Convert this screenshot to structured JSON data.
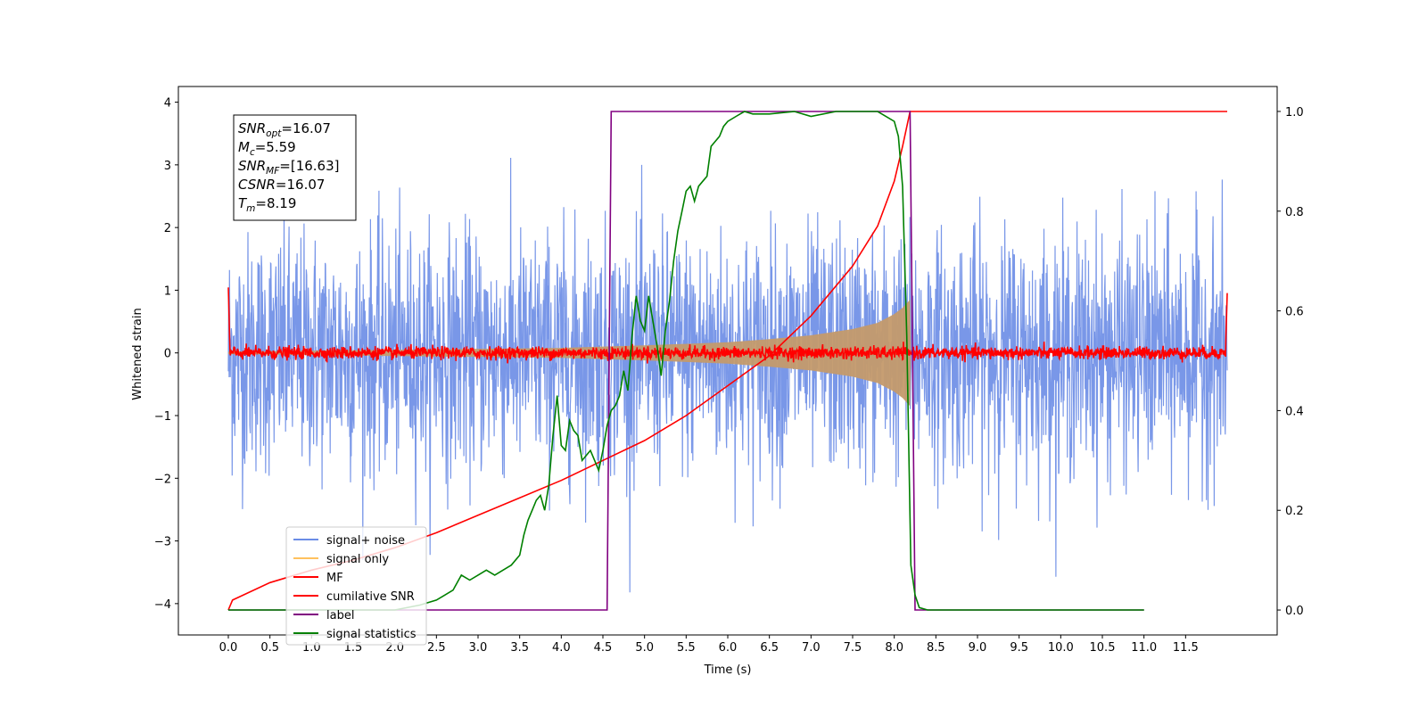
{
  "chart_data": {
    "type": "line",
    "title": "",
    "xlabel": "Time (s)",
    "ylabel": "Whitened strain",
    "y2label": "",
    "xlim": [
      -0.6,
      12.6
    ],
    "ylim": [
      -4.5,
      4.25
    ],
    "y2lim": [
      -0.05,
      1.05
    ],
    "xticks": [
      0.0,
      0.5,
      1.0,
      1.5,
      2.0,
      2.5,
      3.0,
      3.5,
      4.0,
      4.5,
      5.0,
      5.5,
      6.0,
      6.5,
      7.0,
      7.5,
      8.0,
      8.5,
      9.0,
      9.5,
      10.0,
      10.5,
      11.0,
      11.5
    ],
    "xtick_labels": [
      "0.0",
      "0.5",
      "1.0",
      "1.5",
      "2.0",
      "2.5",
      "3.0",
      "3.5",
      "4.0",
      "4.5",
      "5.0",
      "5.5",
      "6.0",
      "6.5",
      "7.0",
      "7.5",
      "8.0",
      "8.5",
      "9.0",
      "9.5",
      "10.0",
      "10.5",
      "11.0",
      "11.5"
    ],
    "yticks": [
      -4,
      -3,
      -2,
      -1,
      0,
      1,
      2,
      3,
      4
    ],
    "ytick_labels": [
      "−4",
      "−3",
      "−2",
      "−1",
      "0",
      "1",
      "2",
      "3",
      "4"
    ],
    "y2ticks": [
      0.0,
      0.2,
      0.4,
      0.6,
      0.8,
      1.0
    ],
    "y2tick_labels": [
      "0.0",
      "0.2",
      "0.4",
      "0.6",
      "0.8",
      "1.0"
    ],
    "grid": false,
    "legend_position": "lower-left",
    "annotation_lines": [
      {
        "id": "snr_opt",
        "base": "SNR",
        "sub": "opt",
        "rest": "=16.07"
      },
      {
        "id": "mc",
        "base": "M",
        "sub": "c",
        "rest": "=5.59"
      },
      {
        "id": "snr_mf",
        "base": "SNR",
        "sub": "MF",
        "rest": "=[16.63]"
      },
      {
        "id": "csnr",
        "base": "CSNR",
        "sub": "",
        "rest": "=16.07"
      },
      {
        "id": "tm",
        "base": "T",
        "sub": "m",
        "rest": "=8.19"
      }
    ],
    "series": [
      {
        "name": "signal+ noise",
        "axis": "left",
        "color": "#6a8ce6",
        "description_values": {
          "t_start": 0.0,
          "t_end": 12.0,
          "std": 1.0,
          "max": 3.85,
          "min": -3.95
        }
      },
      {
        "name": "signal only",
        "axis": "left",
        "color": "#ffc15e",
        "envelope": {
          "x": [
            0.0,
            4.0,
            5.0,
            6.0,
            6.5,
            7.0,
            7.5,
            7.8,
            8.0,
            8.1,
            8.19,
            8.2
          ],
          "amp": [
            0.02,
            0.08,
            0.12,
            0.17,
            0.22,
            0.28,
            0.38,
            0.48,
            0.62,
            0.72,
            0.85,
            0.0
          ]
        }
      },
      {
        "name": "MF",
        "axis": "left",
        "color": "#ff0000",
        "description_values": {
          "t_start": 0.0,
          "t_end": 12.0,
          "std": 0.05,
          "edge_value": 1.0
        }
      },
      {
        "name": "cumilative SNR",
        "axis": "right",
        "color": "#ff0000",
        "x": [
          0.0,
          0.05,
          0.5,
          1.0,
          1.5,
          2.0,
          2.5,
          3.0,
          3.5,
          4.0,
          4.5,
          5.0,
          5.5,
          6.0,
          6.5,
          7.0,
          7.5,
          7.8,
          8.0,
          8.1,
          8.19,
          12.0
        ],
        "y": [
          0.0,
          0.02,
          0.055,
          0.08,
          0.1,
          0.125,
          0.155,
          0.19,
          0.225,
          0.26,
          0.3,
          0.34,
          0.39,
          0.45,
          0.51,
          0.59,
          0.69,
          0.77,
          0.86,
          0.93,
          1.0,
          1.0
        ]
      },
      {
        "name": "label",
        "axis": "right",
        "color": "#800080",
        "x": [
          0.0,
          4.55,
          4.6,
          8.19,
          8.25,
          11.0
        ],
        "y": [
          0.0,
          0.0,
          1.0,
          1.0,
          0.0,
          0.0
        ]
      },
      {
        "name": "signal statistics",
        "axis": "right",
        "color": "#008000",
        "x": [
          0.0,
          1.0,
          2.0,
          2.3,
          2.5,
          2.6,
          2.7,
          2.8,
          2.9,
          3.0,
          3.1,
          3.2,
          3.3,
          3.4,
          3.5,
          3.55,
          3.6,
          3.65,
          3.7,
          3.75,
          3.8,
          3.85,
          3.9,
          3.95,
          4.0,
          4.05,
          4.1,
          4.15,
          4.2,
          4.25,
          4.3,
          4.35,
          4.4,
          4.45,
          4.5,
          4.55,
          4.6,
          4.65,
          4.7,
          4.75,
          4.8,
          4.85,
          4.9,
          4.95,
          5.0,
          5.05,
          5.1,
          5.15,
          5.2,
          5.25,
          5.3,
          5.35,
          5.4,
          5.45,
          5.5,
          5.55,
          5.6,
          5.65,
          5.7,
          5.75,
          5.8,
          5.85,
          5.9,
          5.95,
          6.0,
          6.1,
          6.2,
          6.3,
          6.5,
          6.8,
          7.0,
          7.3,
          7.5,
          7.8,
          8.0,
          8.05,
          8.1,
          8.15,
          8.2,
          8.25,
          8.3,
          8.4,
          8.6,
          9.0,
          10.0,
          11.0
        ],
        "y": [
          0.0,
          0.0,
          0.0,
          0.01,
          0.02,
          0.03,
          0.04,
          0.07,
          0.06,
          0.07,
          0.08,
          0.07,
          0.08,
          0.09,
          0.11,
          0.15,
          0.18,
          0.2,
          0.22,
          0.23,
          0.2,
          0.25,
          0.35,
          0.43,
          0.33,
          0.32,
          0.38,
          0.36,
          0.35,
          0.3,
          0.31,
          0.32,
          0.3,
          0.28,
          0.32,
          0.37,
          0.4,
          0.41,
          0.43,
          0.48,
          0.44,
          0.55,
          0.63,
          0.58,
          0.56,
          0.63,
          0.58,
          0.53,
          0.47,
          0.56,
          0.62,
          0.7,
          0.76,
          0.8,
          0.84,
          0.85,
          0.82,
          0.85,
          0.86,
          0.87,
          0.93,
          0.94,
          0.95,
          0.97,
          0.98,
          0.99,
          1.0,
          0.995,
          0.995,
          1.0,
          0.99,
          1.0,
          1.0,
          1.0,
          0.98,
          0.95,
          0.85,
          0.55,
          0.09,
          0.03,
          0.005,
          0.0,
          0.0,
          0.0,
          0.0,
          0.0
        ]
      }
    ]
  }
}
